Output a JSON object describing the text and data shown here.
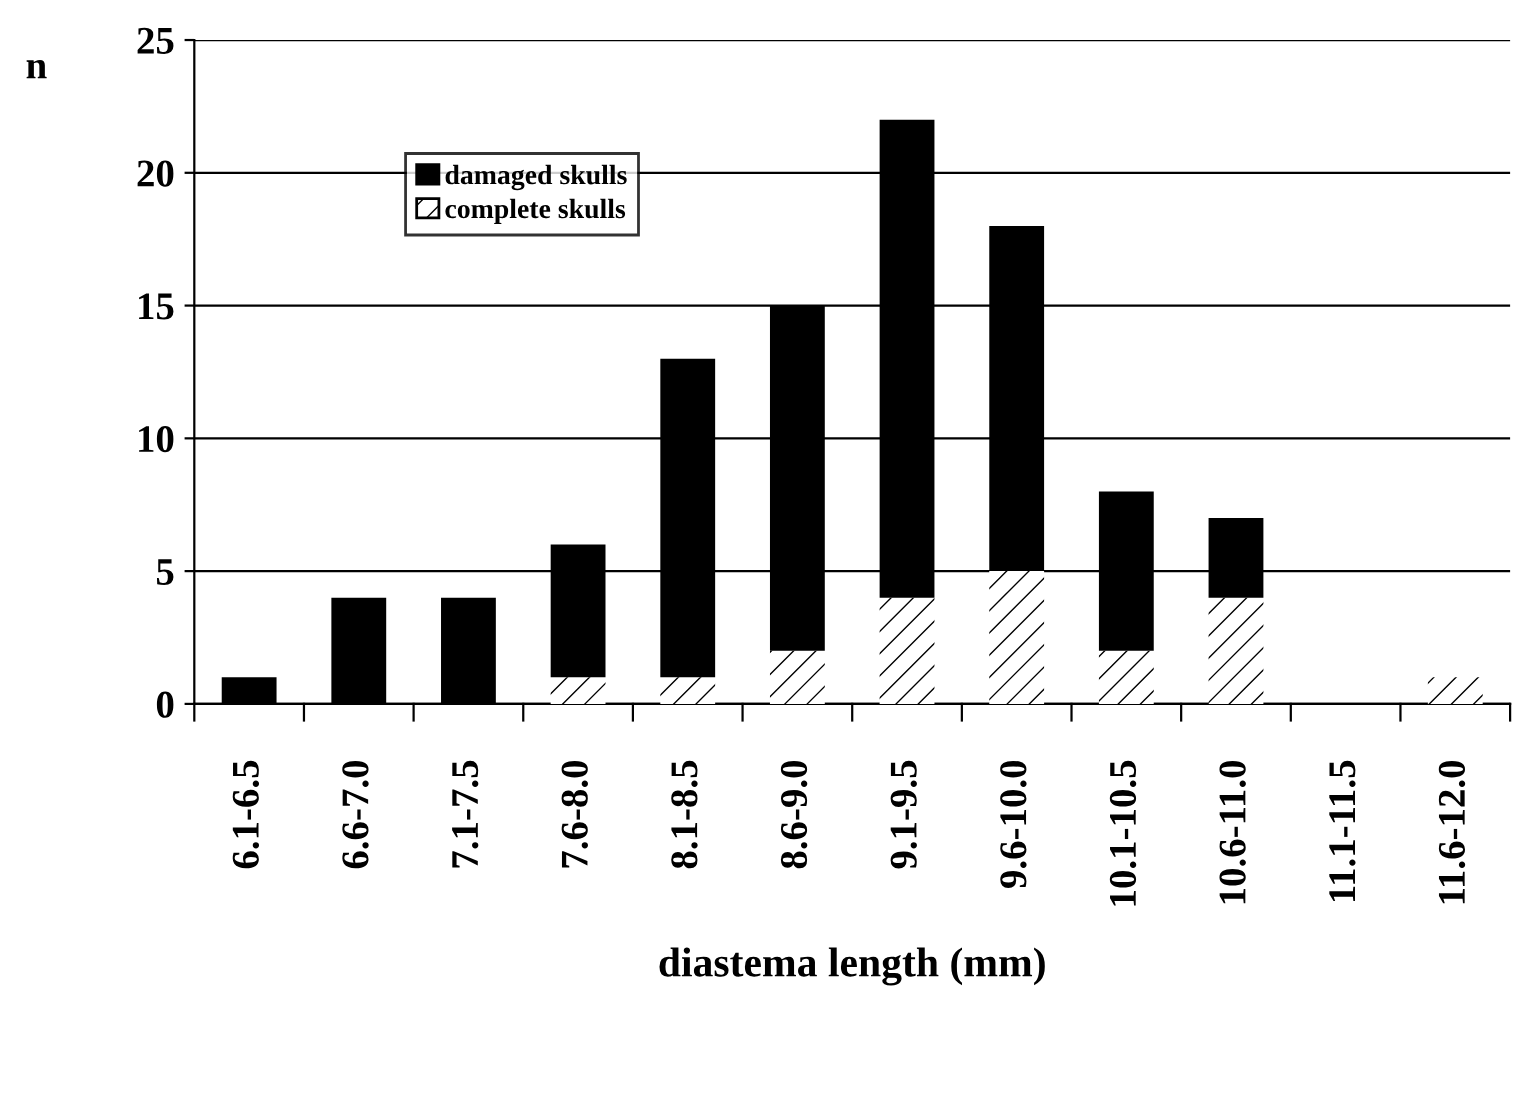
{
  "chart_data": {
    "type": "bar",
    "stacked": true,
    "xlabel": "diastema length (mm)",
    "ylabel": "n",
    "categories": [
      "6.1-6.5",
      "6.6-7.0",
      "7.1-7.5",
      "7.6-8.0",
      "8.1-8.5",
      "8.6-9.0",
      "9.1-9.5",
      "9.6-10.0",
      "10.1-10.5",
      "10.6-11.0",
      "11.1-11.5",
      "11.6-12.0"
    ],
    "series": [
      {
        "name": "complete skulls",
        "color": "#ffffff",
        "values": [
          0,
          0,
          0,
          1,
          1,
          2,
          4,
          5,
          2,
          4,
          0,
          1
        ]
      },
      {
        "name": "damaged skulls",
        "color": "#000000",
        "values": [
          1,
          4,
          4,
          5,
          12,
          13,
          18,
          13,
          6,
          3,
          0,
          0
        ]
      }
    ],
    "ylim": [
      0,
      25
    ],
    "yticks": [
      0,
      5,
      10,
      15,
      20,
      25
    ],
    "grid": "y",
    "legend": "top left"
  }
}
